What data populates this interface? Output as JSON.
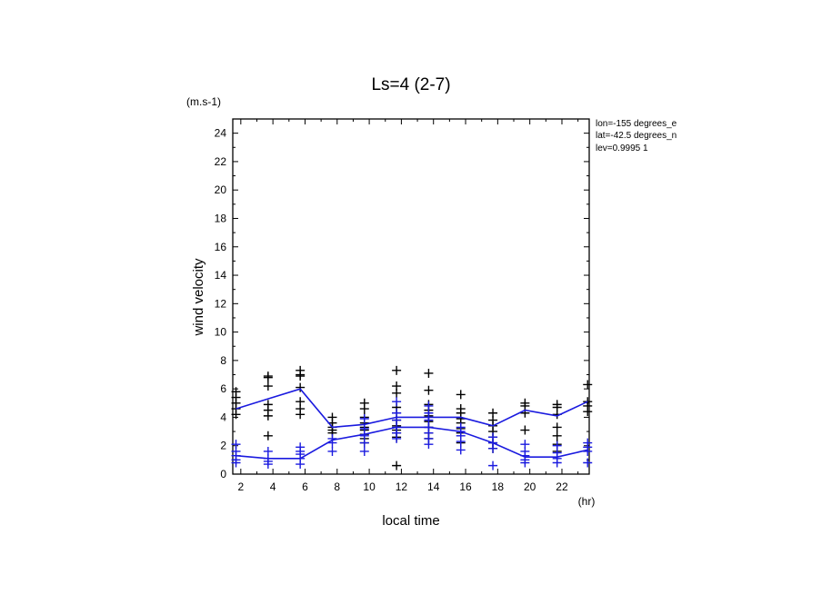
{
  "chart_data": {
    "type": "line",
    "title": "Ls=4 (2-7)",
    "xlabel": "local time",
    "ylabel": "wind velocity",
    "x_unit": "(hr)",
    "y_unit": "(m.s-1)",
    "xlim": [
      1.5,
      23.7
    ],
    "ylim": [
      0,
      25
    ],
    "x_ticks": [
      2,
      4,
      6,
      8,
      10,
      12,
      14,
      16,
      18,
      20,
      22
    ],
    "y_ticks": [
      0,
      2,
      4,
      6,
      8,
      10,
      12,
      14,
      16,
      18,
      20,
      22,
      24
    ],
    "info_lines": [
      "lon=-155 degrees_e",
      "lat=-42.5 degrees_n",
      "lev=0.9995 1"
    ],
    "colors": {
      "series_black": "#000000",
      "series_blue": "#1a1adf"
    },
    "series": [
      {
        "color": "#000000",
        "x": [
          1.7,
          3.7,
          5.7,
          7.7,
          9.7,
          11.7,
          13.7,
          15.7,
          17.7,
          19.7,
          21.7,
          23.6
        ],
        "points": [
          [
            4.2,
            4.6,
            5.0,
            5.4,
            5.8
          ],
          [
            2.7,
            4.1,
            4.5,
            4.9,
            6.2,
            6.8,
            6.9
          ],
          [
            4.2,
            4.6,
            5.1,
            6.1,
            6.9,
            7.0,
            7.3
          ],
          [
            2.9,
            3.1,
            3.3,
            3.6,
            4.0
          ],
          [
            2.2,
            2.5,
            2.8,
            3.1,
            3.3,
            3.6,
            4.0,
            4.6,
            5.0
          ],
          [
            0.6,
            2.6,
            2.9,
            3.1,
            3.4,
            3.8,
            4.3,
            4.7,
            5.7,
            6.2,
            7.3
          ],
          [
            2.5,
            2.9,
            3.3,
            3.7,
            4.1,
            4.5,
            4.9,
            5.9,
            7.1
          ],
          [
            2.2,
            2.9,
            3.2,
            3.6,
            3.9,
            4.3,
            4.6,
            5.6
          ],
          [
            1.8,
            2.2,
            2.6,
            3.0,
            3.4,
            3.8,
            4.3
          ],
          [
            3.1,
            4.3,
            4.8,
            5.0
          ],
          [
            1.6,
            2.1,
            2.7,
            3.3,
            4.2,
            4.7,
            4.9
          ],
          [
            4.4,
            4.8,
            5.1,
            6.3
          ]
        ],
        "mean_line": [
          4.6,
          5.3,
          6.0,
          3.3,
          3.5,
          4.0,
          4.0,
          4.0,
          3.4,
          4.5,
          4.1,
          5.1
        ]
      },
      {
        "color": "#1a1adf",
        "x": [
          1.7,
          3.7,
          5.7,
          7.7,
          9.7,
          11.7,
          13.7,
          15.7,
          17.7,
          19.7,
          21.7,
          23.6
        ],
        "points": [
          [
            0.8,
            1.0,
            1.3,
            1.6,
            2.1
          ],
          [
            0.7,
            0.9,
            1.1,
            1.6
          ],
          [
            0.7,
            1.1,
            1.4,
            1.6,
            1.9
          ],
          [
            1.6,
            2.2,
            2.5
          ],
          [
            1.6,
            2.2,
            2.7,
            3.2,
            3.9
          ],
          [
            2.5,
            2.9,
            3.3,
            3.8,
            4.3,
            5.1
          ],
          [
            2.1,
            2.5,
            2.9,
            3.3,
            3.8,
            4.3,
            4.8
          ],
          [
            1.7,
            2.3,
            2.7,
            3.0,
            3.3
          ],
          [
            0.6,
            1.8,
            2.2,
            2.6
          ],
          [
            0.8,
            1.0,
            1.3,
            1.6,
            2.1
          ],
          [
            0.8,
            1.1,
            1.5,
            2.0
          ],
          [
            0.8,
            1.6,
            1.9,
            2.2
          ]
        ],
        "mean_line": [
          1.3,
          1.1,
          1.1,
          2.4,
          2.8,
          3.3,
          3.3,
          3.0,
          2.2,
          1.2,
          1.2,
          1.7
        ]
      }
    ]
  }
}
